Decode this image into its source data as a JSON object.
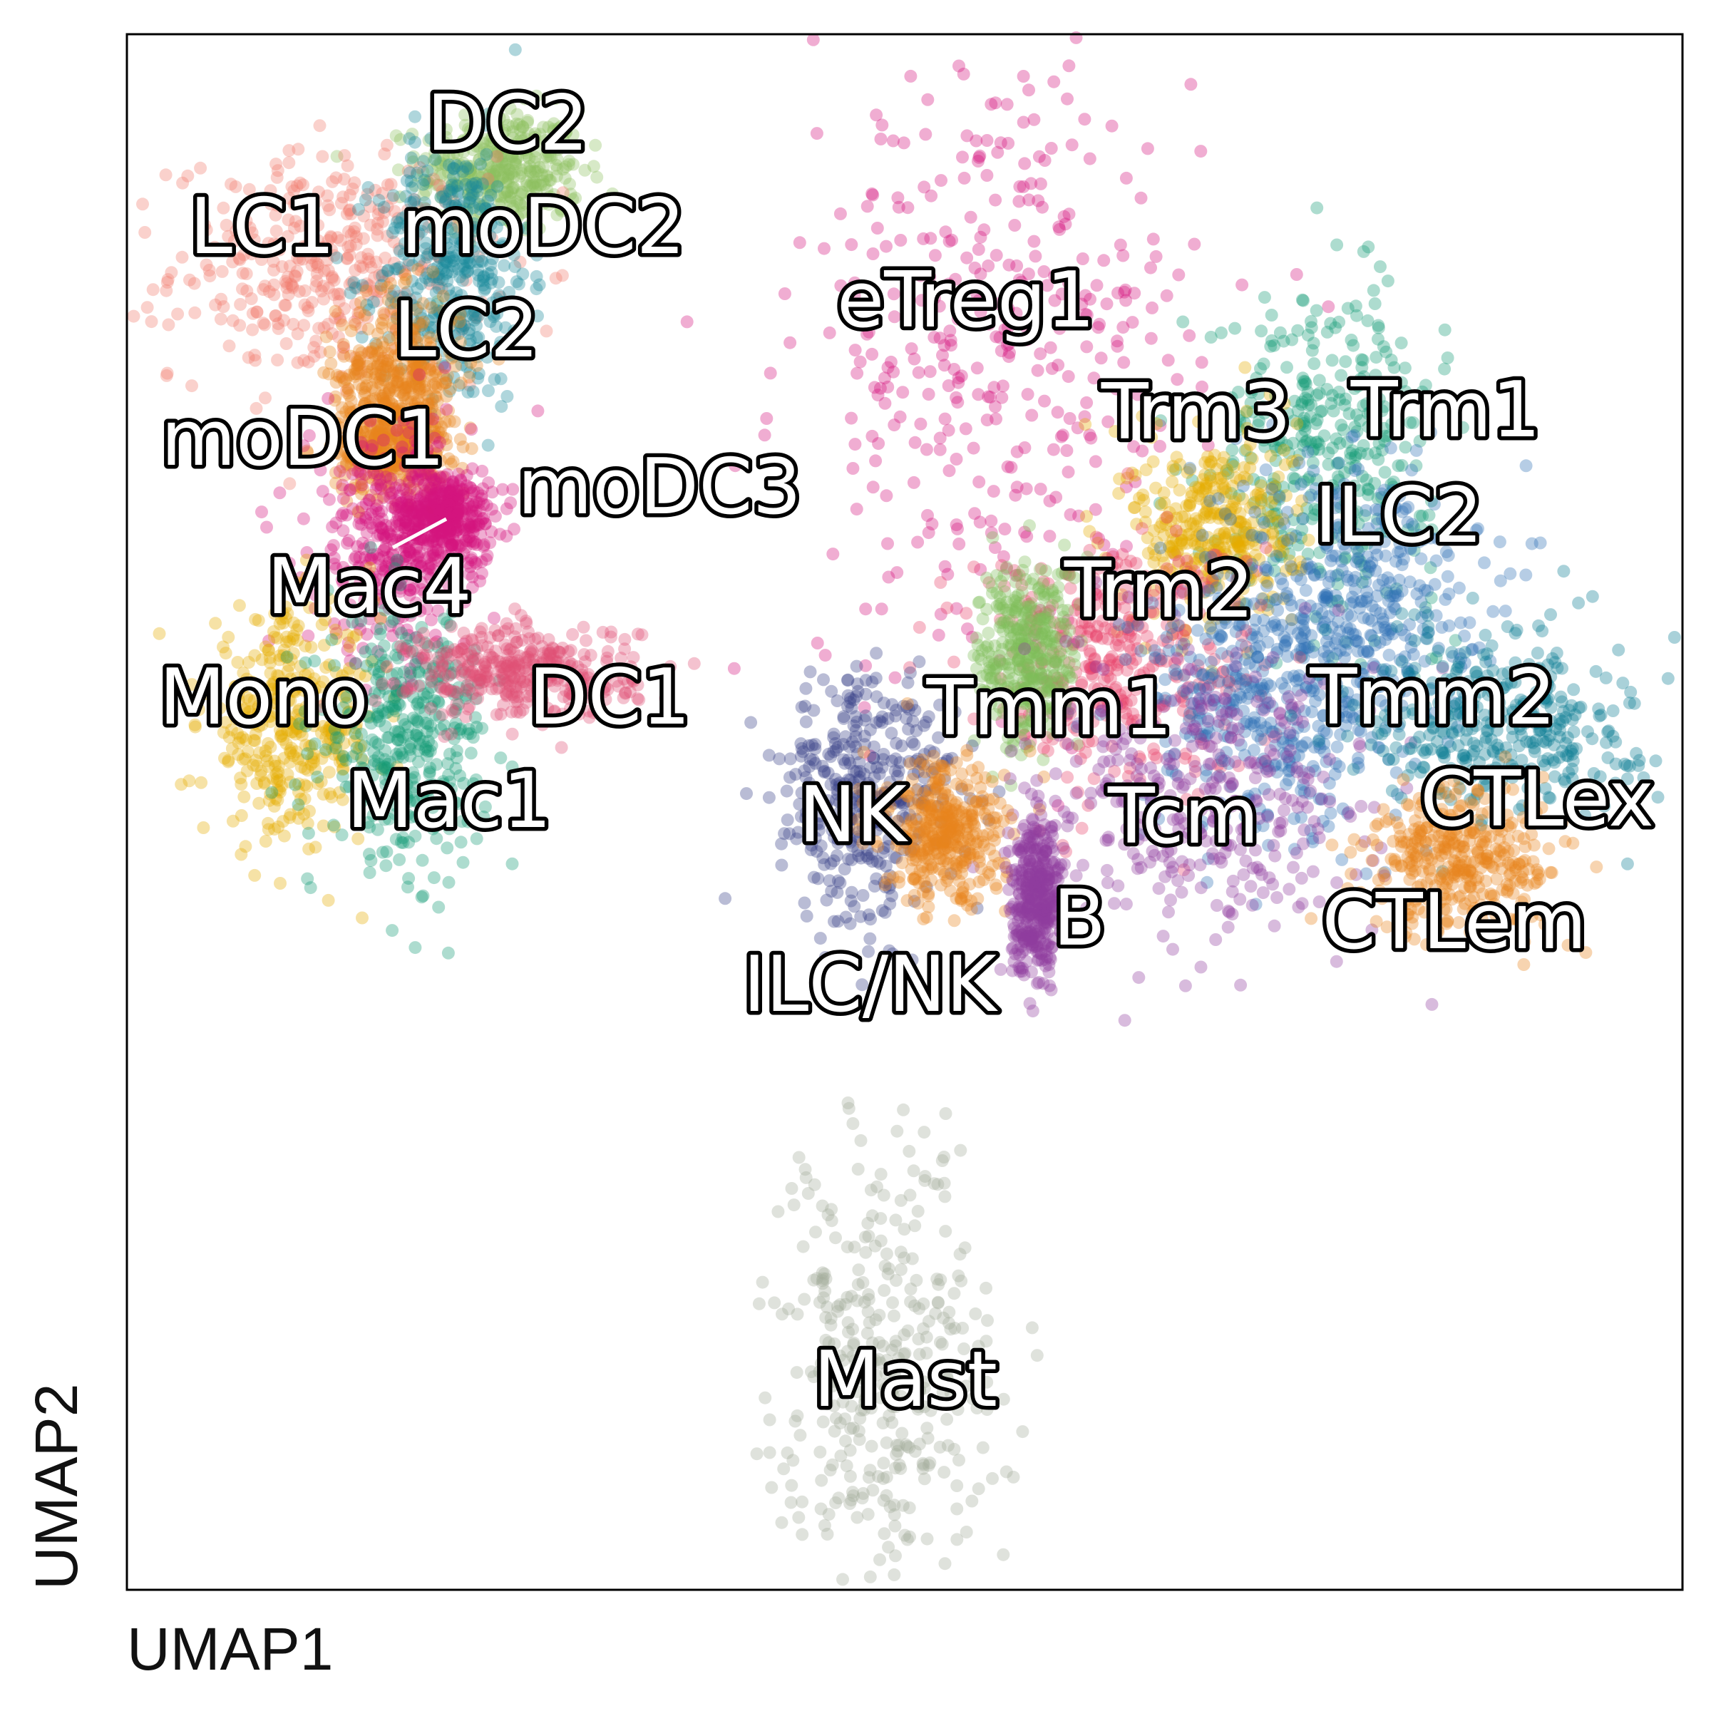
{
  "chart_data": {
    "type": "scatter",
    "xlabel": "UMAP1",
    "ylabel": "UMAP2",
    "xlim": [
      0,
      100
    ],
    "ylim": [
      0,
      100
    ],
    "grid": false,
    "legend": "none (labels placed on clusters)",
    "clusters": [
      {
        "label": "DC2",
        "color": "#8cc05f",
        "x": 24.0,
        "y": 91.2,
        "sx": 2.6,
        "sy": 2.0
      },
      {
        "label": "LC1",
        "color": "#f07b6e",
        "x": 13.0,
        "y": 85.0,
        "sx": 5.0,
        "sy": 3.6
      },
      {
        "label": "moDC2",
        "color": "#1b8a9a",
        "x": 21.0,
        "y": 84.6,
        "sx": 2.4,
        "sy": 4.2
      },
      {
        "label": "LC2",
        "color": "#e8851c",
        "x": 17.5,
        "y": 78.0,
        "sx": 2.0,
        "sy": 2.6
      },
      {
        "label": "moDC1",
        "color": "#e8851c",
        "x": 17.0,
        "y": 73.5,
        "sx": 1.8,
        "sy": 1.6
      },
      {
        "label": "moDC3",
        "color": "#d4137e",
        "x": 20.5,
        "y": 69.0,
        "sx": 1.5,
        "sy": 1.5
      },
      {
        "label": "Mac4",
        "color": "#d4137e",
        "x": 17.0,
        "y": 67.5,
        "sx": 2.6,
        "sy": 3.8
      },
      {
        "label": "Mono",
        "color": "#e6ac00",
        "x": 10.5,
        "y": 55.5,
        "sx": 2.8,
        "sy": 3.6
      },
      {
        "label": "Mac1",
        "color": "#139a76",
        "x": 18.0,
        "y": 55.0,
        "sx": 2.6,
        "sy": 4.0
      },
      {
        "label": "DC1",
        "color": "#e04f75",
        "x": 25.5,
        "y": 59.0,
        "sx": 3.6,
        "sy": 1.5
      },
      {
        "label": "eTreg1",
        "color": "#d4137e",
        "x": 56.0,
        "y": 79.0,
        "sx": 6.5,
        "sy": 10.0
      },
      {
        "label": "Trm1",
        "color": "#139a76",
        "x": 77.0,
        "y": 73.5,
        "sx": 3.6,
        "sy": 5.0
      },
      {
        "label": "Trm3",
        "color": "#e6ac00",
        "x": 70.0,
        "y": 68.0,
        "sx": 2.6,
        "sy": 3.2
      },
      {
        "label": "ILC2",
        "color": "#2f6fb5",
        "x": 79.0,
        "y": 64.0,
        "sx": 4.0,
        "sy": 4.5
      },
      {
        "label": "Trm2",
        "color": "#e8416b",
        "x": 63.5,
        "y": 60.0,
        "sx": 4.5,
        "sy": 4.0
      },
      {
        "label": "Tmm1",
        "color": "#7fbd5a",
        "x": 58.0,
        "y": 60.0,
        "sx": 1.6,
        "sy": 3.0
      },
      {
        "label": "Tmm2",
        "color": "#2f6fb5",
        "x": 73.0,
        "y": 57.0,
        "sx": 4.0,
        "sy": 4.5
      },
      {
        "label": "Tcm",
        "color": "#8e3b9f",
        "x": 69.0,
        "y": 50.5,
        "sx": 5.5,
        "sy": 4.5
      },
      {
        "label": "CTLex",
        "color": "#0a7b91",
        "x": 88.5,
        "y": 56.0,
        "sx": 4.2,
        "sy": 3.0
      },
      {
        "label": "CTLem",
        "color": "#e8851c",
        "x": 86.0,
        "y": 47.0,
        "sx": 3.2,
        "sy": 2.4
      },
      {
        "label": "NK",
        "color": "#363f87",
        "x": 47.5,
        "y": 51.0,
        "sx": 2.8,
        "sy": 4.2
      },
      {
        "label": "ILC/NK",
        "color": "#e8851c",
        "x": 52.5,
        "y": 48.5,
        "sx": 2.0,
        "sy": 2.2
      },
      {
        "label": "B",
        "color": "#8e3b9f",
        "x": 58.5,
        "y": 44.5,
        "sx": 0.8,
        "sy": 2.4
      },
      {
        "label": "Mast",
        "color": "#a3ad9a",
        "x": 48.5,
        "y": 13.5,
        "sx": 3.5,
        "sy": 7.5
      }
    ]
  }
}
